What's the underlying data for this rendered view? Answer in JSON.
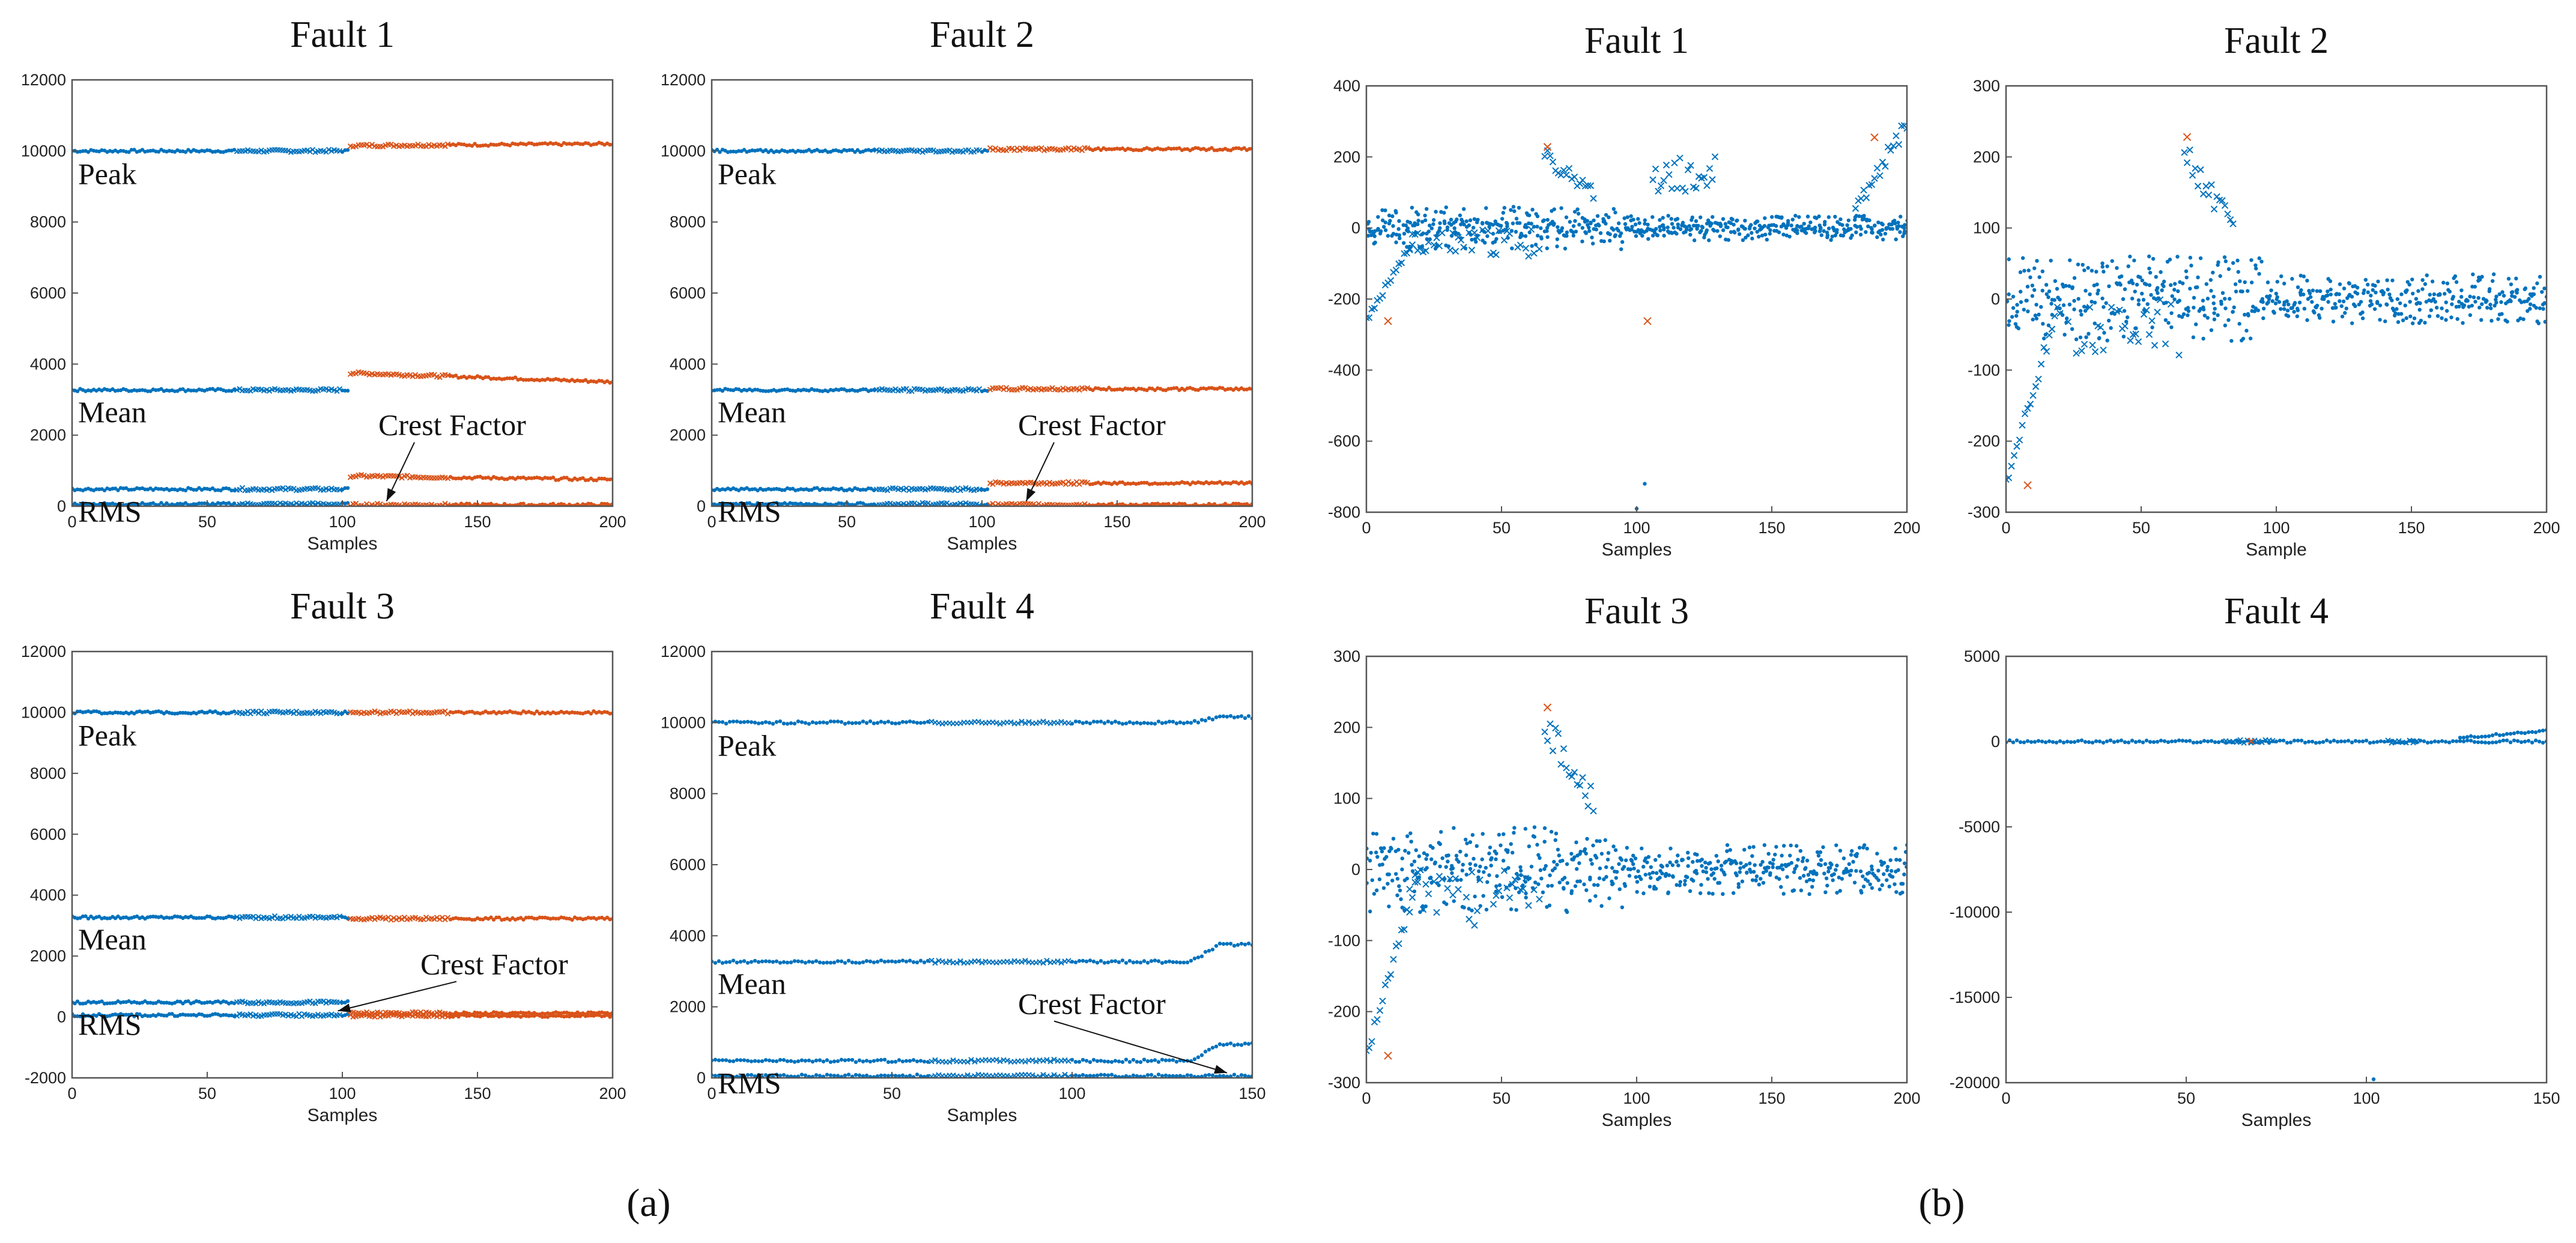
{
  "colors": {
    "normal": "#0072BD",
    "fault": "#D95319",
    "axis": "#555555",
    "text": "#111111"
  },
  "panel_labels": {
    "a": "(a)",
    "b": "(b)"
  },
  "chart_data": [
    {
      "id": "a1",
      "type": "scatter",
      "title": "Fault 1",
      "xlabel": "Samples",
      "xlim": [
        0,
        200
      ],
      "ylim": [
        0,
        12000
      ],
      "xticks": [
        0,
        50,
        100,
        150,
        200
      ],
      "yticks": [
        0,
        2000,
        4000,
        6000,
        8000,
        10000,
        12000
      ],
      "series_labels": [
        {
          "text": "Peak",
          "y": 10000
        },
        {
          "text": "Mean",
          "y": 3300
        },
        {
          "text": "RMS",
          "y": 500
        }
      ],
      "annotation": {
        "text": "Crest Factor",
        "x": 115
      },
      "fault_start": 103,
      "series": [
        {
          "name": "Peak",
          "normal": 10000,
          "fault": 10150,
          "fault_end": 10200
        },
        {
          "name": "Mean",
          "normal": 3270,
          "fault": 3750,
          "fault_end": 3500
        },
        {
          "name": "RMS",
          "normal": 480,
          "fault": 850,
          "fault_end": 750
        },
        {
          "name": "Crest Factor",
          "normal": 60,
          "fault": 40,
          "fault_end": 40
        }
      ]
    },
    {
      "id": "a2",
      "type": "scatter",
      "title": "Fault 2",
      "xlabel": "Samples",
      "xlim": [
        0,
        200
      ],
      "ylim": [
        0,
        12000
      ],
      "xticks": [
        0,
        50,
        100,
        150,
        200
      ],
      "yticks": [
        0,
        2000,
        4000,
        6000,
        8000,
        10000,
        12000
      ],
      "series_labels": [
        {
          "text": "Peak",
          "y": 10000
        },
        {
          "text": "Mean",
          "y": 3300
        },
        {
          "text": "RMS",
          "y": 500
        }
      ],
      "annotation": {
        "text": "Crest Factor",
        "x": 115
      },
      "fault_start": 103,
      "series": [
        {
          "name": "Peak",
          "normal": 10000,
          "fault": 10050,
          "fault_end": 10050
        },
        {
          "name": "Mean",
          "normal": 3270,
          "fault": 3300,
          "fault_end": 3300
        },
        {
          "name": "RMS",
          "normal": 480,
          "fault": 650,
          "fault_end": 650
        },
        {
          "name": "Crest Factor",
          "normal": 60,
          "fault": 40,
          "fault_end": 40
        }
      ]
    },
    {
      "id": "a3",
      "type": "scatter",
      "title": "Fault 3",
      "xlabel": "Samples",
      "xlim": [
        0,
        200
      ],
      "ylim": [
        -2000,
        12000
      ],
      "xticks": [
        0,
        50,
        100,
        150,
        200
      ],
      "yticks": [
        -2000,
        0,
        2000,
        4000,
        6000,
        8000,
        10000,
        12000
      ],
      "series_labels": [
        {
          "text": "Peak",
          "y": 10000
        },
        {
          "text": "Mean",
          "y": 3300
        },
        {
          "text": "RMS",
          "y": 500
        }
      ],
      "annotation": {
        "text": "Crest Factor",
        "x": 97
      },
      "fault_start": 103,
      "series": [
        {
          "name": "Peak",
          "normal": 10000,
          "fault": 10000,
          "fault_end": 10000
        },
        {
          "name": "Mean",
          "normal": 3270,
          "fault": 3230,
          "fault_end": 3230
        },
        {
          "name": "RMS",
          "normal": 480,
          "fault": 120,
          "fault_end": 120
        },
        {
          "name": "Crest Factor",
          "normal": 60,
          "fault": 40,
          "fault_end": 40
        }
      ]
    },
    {
      "id": "a4",
      "type": "scatter",
      "title": "Fault 4",
      "xlabel": "Samples",
      "xlim": [
        0,
        150
      ],
      "ylim": [
        0,
        12000
      ],
      "xticks": [
        0,
        50,
        100,
        150
      ],
      "yticks": [
        0,
        2000,
        4000,
        6000,
        8000,
        10000,
        12000
      ],
      "series_labels": [
        {
          "text": "Peak",
          "y": 10000
        },
        {
          "text": "Mean",
          "y": 3300
        },
        {
          "text": "RMS",
          "y": 500
        }
      ],
      "annotation": {
        "text": "Crest Factor",
        "x": 142
      },
      "fault_start": 999,
      "series": [
        {
          "name": "Peak",
          "normal": 10000,
          "rise_to": 10150
        },
        {
          "name": "Mean",
          "normal": 3270,
          "rise_to": 3750
        },
        {
          "name": "RMS",
          "normal": 480,
          "rise_to": 950
        },
        {
          "name": "Crest Factor",
          "normal": 60,
          "rise_to": 60
        }
      ]
    },
    {
      "id": "b1",
      "type": "scatter",
      "title": "Fault 1",
      "xlabel": "Samples",
      "xlim": [
        0,
        200
      ],
      "ylim": [
        -800,
        400
      ],
      "xticks": [
        0,
        50,
        100,
        150,
        200
      ],
      "yticks": [
        -800,
        -600,
        -400,
        -200,
        0,
        200,
        400
      ]
    },
    {
      "id": "b2",
      "type": "scatter",
      "title": "Fault 2",
      "xlabel": "Sample",
      "xlim": [
        0,
        200
      ],
      "ylim": [
        -300,
        300
      ],
      "xticks": [
        0,
        50,
        100,
        150,
        200
      ],
      "yticks": [
        -300,
        -200,
        -100,
        0,
        100,
        200,
        300
      ]
    },
    {
      "id": "b3",
      "type": "scatter",
      "title": "Fault 3",
      "xlabel": "Samples",
      "xlim": [
        0,
        200
      ],
      "ylim": [
        -300,
        300
      ],
      "xticks": [
        0,
        50,
        100,
        150,
        200
      ],
      "yticks": [
        -300,
        -200,
        -100,
        0,
        100,
        200,
        300
      ]
    },
    {
      "id": "b4",
      "type": "scatter",
      "title": "Fault 4",
      "xlabel": "Samples",
      "xlim": [
        0,
        150
      ],
      "ylim": [
        -20000,
        5000
      ],
      "xticks": [
        0,
        50,
        100,
        150
      ],
      "yticks": [
        -20000,
        -15000,
        -10000,
        -5000,
        0,
        5000
      ]
    }
  ]
}
